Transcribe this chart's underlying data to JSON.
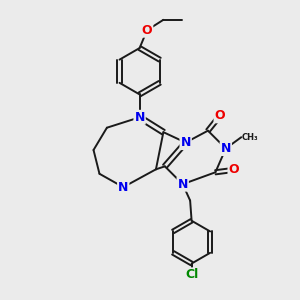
{
  "background_color": "#ebebeb",
  "bond_color": "#1a1a1a",
  "N_color": "#0000ee",
  "O_color": "#ee0000",
  "Cl_color": "#008800",
  "bond_width": 1.4,
  "font_size_atom": 8,
  "fig_width": 3.0,
  "fig_height": 3.0,
  "dpi": 100,
  "xlim": [
    0,
    10
  ],
  "ylim": [
    0,
    10
  ]
}
